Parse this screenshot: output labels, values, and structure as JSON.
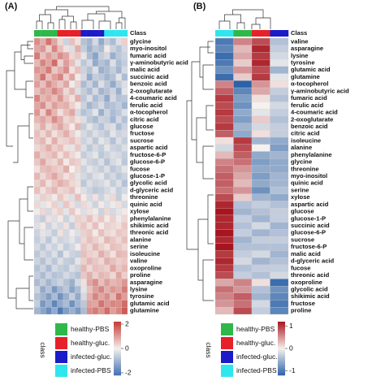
{
  "legend": {
    "title": "class",
    "items": [
      {
        "name": "healthy-PBS",
        "color": "#2fb84a"
      },
      {
        "name": "healthy-gluc.",
        "color": "#e62129"
      },
      {
        "name": "infected-gluc.",
        "color": "#1b1bc8"
      },
      {
        "name": "infected-PBS",
        "color": "#2ee6ee"
      }
    ]
  },
  "chart_data": [
    {
      "type": "heatmap",
      "panel_label": "(A)",
      "class_label": "Class",
      "colors": [
        "#3f6fb0",
        "#f5f1ee",
        "#c43a36"
      ],
      "zlim": [
        -2.2,
        2.2
      ],
      "colorbar_ticks": [
        2,
        0,
        -2
      ],
      "class_colors": [
        "#2fb84a",
        "#2fb84a",
        "#2fb84a",
        "#2fb84a",
        "#e62129",
        "#e62129",
        "#e62129",
        "#e62129",
        "#1b1bc8",
        "#1b1bc8",
        "#1b1bc8",
        "#1b1bc8",
        "#2ee6ee",
        "#2ee6ee",
        "#2ee6ee",
        "#2ee6ee"
      ],
      "rows": [
        "glycine",
        "myo-inositol",
        "fumaric acid",
        "γ-aminobutyric acid",
        "malic acid",
        "succinic acid",
        "benzoic acid",
        "2-oxoglutarate",
        "4-coumaric acid",
        "ferulic acid",
        "α-tocopherol",
        "citric acid",
        "glucose",
        "fructose",
        "sucrose",
        "aspartic acid",
        "fructose-6-P",
        "glucose-6-P",
        "fucose",
        "glucose-1-P",
        "glycolic acid",
        "d-glyceric acid",
        "threonine",
        "quinic acid",
        "xylose",
        "phenylalanine",
        "shikimic acid",
        "threonic acid",
        "alanine",
        "serine",
        "isoleucine",
        "valine",
        "oxoproline",
        "proline",
        "asparagine",
        "lysine",
        "tyrosine",
        "glutamic acid",
        "glutamine"
      ],
      "values": [
        [
          1.2,
          0.8,
          1.5,
          0.9,
          0.3,
          -0.5,
          0.6,
          0.2,
          -0.8,
          -1.0,
          -0.4,
          -1.2,
          -0.6,
          -0.9,
          -0.3,
          0.4
        ],
        [
          0.9,
          1.1,
          0.4,
          1.3,
          0.6,
          0.2,
          -0.3,
          0.8,
          -0.6,
          -1.1,
          -0.7,
          -0.9,
          0.1,
          -0.5,
          -0.8,
          -0.4
        ],
        [
          1.4,
          0.6,
          1.0,
          0.7,
          1.2,
          0.9,
          0.3,
          0.5,
          -0.2,
          -0.9,
          -1.3,
          -0.6,
          -0.4,
          -1.1,
          -0.7,
          -0.5
        ],
        [
          0.7,
          1.3,
          0.9,
          1.6,
          0.4,
          1.0,
          0.6,
          -0.2,
          -0.7,
          -0.4,
          -1.2,
          -0.8,
          -1.0,
          -0.3,
          -0.9,
          -0.6
        ],
        [
          1.1,
          0.9,
          1.4,
          0.5,
          0.8,
          1.2,
          0.2,
          0.6,
          -0.5,
          -0.8,
          -0.3,
          -1.1,
          -0.9,
          -0.6,
          -1.0,
          -0.4
        ],
        [
          0.8,
          1.5,
          0.6,
          1.0,
          1.3,
          0.4,
          0.9,
          0.1,
          -0.4,
          -1.2,
          -0.6,
          -0.7,
          -1.0,
          -0.8,
          -0.2,
          -0.9
        ],
        [
          1.0,
          0.6,
          1.2,
          0.8,
          0.5,
          0.9,
          -0.1,
          0.4,
          -0.9,
          -0.5,
          -1.0,
          -0.3,
          -0.7,
          -1.2,
          -0.6,
          -0.3
        ],
        [
          0.6,
          1.0,
          0.8,
          1.3,
          0.9,
          0.3,
          0.7,
          -0.3,
          -0.6,
          -0.9,
          -0.4,
          -1.0,
          -0.8,
          -0.5,
          -1.1,
          -0.2
        ],
        [
          1.3,
          0.7,
          0.9,
          0.6,
          1.1,
          0.5,
          0.2,
          0.8,
          -0.7,
          -0.3,
          -0.9,
          -0.6,
          -1.2,
          -0.4,
          -0.8,
          -0.7
        ],
        [
          0.9,
          1.2,
          0.5,
          1.0,
          0.7,
          0.8,
          0.4,
          0.1,
          -0.5,
          -1.0,
          -0.7,
          -0.4,
          -0.9,
          -0.8,
          -0.6,
          -1.0
        ],
        [
          1.1,
          0.4,
          1.3,
          0.7,
          0.2,
          0.6,
          0.9,
          -0.4,
          -0.8,
          -0.6,
          -0.2,
          -1.1,
          -0.5,
          -0.9,
          -0.7,
          -0.3
        ],
        [
          0.7,
          0.9,
          0.6,
          1.2,
          0.8,
          0.3,
          0.5,
          0.2,
          -0.3,
          -0.7,
          -0.9,
          -0.5,
          -0.6,
          -1.0,
          -0.4,
          -0.8
        ],
        [
          0.4,
          0.8,
          0.3,
          0.6,
          0.9,
          0.5,
          0.1,
          0.7,
          -0.6,
          -0.2,
          -0.5,
          -0.8,
          -0.4,
          -0.3,
          -0.9,
          -0.5
        ],
        [
          0.6,
          0.3,
          0.7,
          0.2,
          0.5,
          0.8,
          0.4,
          -0.1,
          -0.4,
          -0.6,
          -0.3,
          -0.5,
          -0.7,
          -0.2,
          -0.5,
          -0.4
        ],
        [
          0.5,
          0.7,
          0.2,
          0.8,
          0.3,
          0.4,
          0.6,
          0.3,
          -0.5,
          -0.3,
          -0.7,
          -0.2,
          -0.4,
          -0.8,
          -0.3,
          -0.6
        ],
        [
          0.3,
          0.5,
          0.8,
          0.4,
          0.6,
          0.2,
          -0.2,
          0.5,
          -0.3,
          -0.7,
          -0.4,
          -0.6,
          -0.2,
          -0.5,
          -0.6,
          -0.3
        ],
        [
          0.8,
          0.4,
          0.5,
          0.7,
          0.2,
          0.6,
          0.3,
          0.1,
          -0.6,
          -0.4,
          -0.2,
          -0.7,
          -0.5,
          -0.3,
          -0.4,
          -0.6
        ],
        [
          0.5,
          0.9,
          0.4,
          0.3,
          0.7,
          0.1,
          0.5,
          0.4,
          -0.2,
          -0.5,
          -0.6,
          -0.3,
          -0.8,
          -0.4,
          -0.2,
          -0.7
        ],
        [
          0.2,
          0.6,
          0.7,
          0.5,
          0.4,
          0.8,
          0.0,
          0.3,
          -0.5,
          -0.2,
          -0.4,
          -0.6,
          -0.3,
          -0.7,
          -0.5,
          -0.2
        ],
        [
          0.7,
          0.3,
          0.6,
          0.9,
          0.5,
          0.2,
          0.4,
          -0.2,
          -0.4,
          -0.6,
          -0.3,
          -0.2,
          -0.6,
          -0.4,
          -0.7,
          -0.5
        ],
        [
          0.4,
          0.7,
          0.2,
          0.5,
          0.8,
          0.6,
          0.3,
          0.2,
          -0.7,
          -0.3,
          -0.5,
          -0.4,
          -0.2,
          -0.6,
          -0.3,
          -0.8
        ],
        [
          0.6,
          0.2,
          0.5,
          0.7,
          0.3,
          0.4,
          0.6,
          0.1,
          -0.3,
          -0.5,
          -0.7,
          -0.6,
          -0.4,
          -0.2,
          -0.6,
          -0.4
        ],
        [
          -0.2,
          0.4,
          0.3,
          -0.1,
          0.5,
          0.2,
          -0.3,
          0.6,
          0.1,
          -0.4,
          0.2,
          -0.5,
          -0.2,
          0.3,
          -0.6,
          -0.1
        ],
        [
          0.3,
          -0.2,
          0.1,
          0.4,
          -0.3,
          0.5,
          0.2,
          -0.4,
          0.3,
          -0.2,
          -0.5,
          0.1,
          -0.3,
          -0.1,
          0.2,
          -0.4
        ],
        [
          -0.1,
          0.3,
          -0.4,
          0.2,
          0.4,
          -0.2,
          0.5,
          0.1,
          -0.3,
          0.2,
          -0.1,
          -0.5,
          0.3,
          -0.4,
          -0.2,
          0.1
        ],
        [
          -0.4,
          -0.6,
          0.2,
          -0.3,
          0.1,
          -0.5,
          -0.2,
          0.4,
          0.3,
          0.6,
          0.2,
          0.5,
          0.1,
          0.4,
          -0.1,
          0.3
        ],
        [
          -0.3,
          0.1,
          -0.5,
          -0.2,
          -0.4,
          0.2,
          -0.6,
          0.3,
          0.5,
          0.2,
          0.6,
          0.1,
          0.4,
          0.3,
          0.2,
          0.5
        ],
        [
          -0.5,
          -0.2,
          -0.3,
          -0.6,
          0.2,
          -0.4,
          -0.1,
          -0.3,
          0.4,
          0.5,
          0.1,
          0.6,
          0.3,
          0.2,
          0.5,
          0.4
        ],
        [
          -0.6,
          -0.3,
          -0.7,
          -0.2,
          -0.5,
          -0.4,
          -0.2,
          -0.5,
          0.3,
          0.6,
          0.4,
          0.2,
          0.7,
          0.5,
          0.3,
          0.6
        ],
        [
          -0.4,
          -0.7,
          -0.3,
          -0.5,
          -0.2,
          -0.6,
          -0.4,
          -0.1,
          0.5,
          0.3,
          0.7,
          0.4,
          0.2,
          0.6,
          0.5,
          0.3
        ],
        [
          -0.7,
          -0.4,
          -0.6,
          -0.3,
          -0.8,
          -0.2,
          -0.5,
          -0.6,
          0.6,
          0.4,
          0.3,
          0.8,
          0.5,
          0.2,
          0.7,
          0.6
        ],
        [
          -0.5,
          -0.8,
          -0.4,
          -0.7,
          -0.3,
          -0.6,
          -0.7,
          -0.2,
          0.4,
          0.7,
          0.5,
          0.3,
          0.8,
          0.6,
          0.4,
          0.5
        ],
        [
          -0.8,
          -0.5,
          -0.9,
          -0.4,
          -0.6,
          -0.7,
          -0.3,
          -0.5,
          0.7,
          0.3,
          0.6,
          0.5,
          0.4,
          0.9,
          0.5,
          0.7
        ],
        [
          -0.6,
          -0.9,
          -0.5,
          -0.8,
          -0.7,
          -0.4,
          -0.6,
          -0.8,
          0.5,
          0.8,
          0.4,
          0.7,
          0.6,
          0.3,
          0.9,
          0.4
        ],
        [
          -0.9,
          -0.6,
          -1.0,
          -0.7,
          -0.5,
          -0.8,
          -1.1,
          -0.4,
          0.2,
          0.9,
          1.2,
          0.6,
          1.0,
          0.7,
          0.8,
          1.1
        ],
        [
          -0.5,
          -1.2,
          -0.8,
          -1.5,
          -1.0,
          -0.7,
          -1.3,
          -0.9,
          -0.2,
          0.6,
          1.0,
          1.3,
          0.8,
          1.1,
          0.9,
          1.4
        ],
        [
          -0.8,
          -1.0,
          -1.4,
          -0.9,
          -1.6,
          -1.1,
          -0.6,
          -1.2,
          -0.4,
          0.8,
          1.3,
          0.9,
          1.2,
          0.7,
          1.5,
          1.0
        ],
        [
          -0.6,
          -1.5,
          -1.1,
          -1.8,
          -1.2,
          -0.9,
          -1.6,
          -1.0,
          -0.7,
          1.0,
          0.9,
          1.5,
          1.1,
          1.3,
          1.2,
          1.6
        ],
        [
          -1.0,
          -1.3,
          -1.7,
          -1.2,
          -2.0,
          -1.4,
          -1.1,
          -1.5,
          -0.9,
          1.2,
          1.4,
          1.1,
          1.6,
          1.0,
          1.3,
          1.8
        ]
      ]
    },
    {
      "type": "heatmap",
      "panel_label": "(B)",
      "class_label": "Class",
      "colors": [
        "#2b62a8",
        "#f5f1ee",
        "#a8151f"
      ],
      "zlim": [
        -1.2,
        1.2
      ],
      "colorbar_ticks": [
        1,
        0,
        -1
      ],
      "class_colors": [
        "#2ee6ee",
        "#2fb84a",
        "#e62129",
        "#1b1bc8"
      ],
      "rows": [
        "valine",
        "asparagine",
        "lysine",
        "tyrosine",
        "glutamic acid",
        "glutamine",
        "α-tocopherol",
        "γ-aminobutyric acid",
        "fumaric acid",
        "ferulic acid",
        "4-coumaric acid",
        "2-oxoglutarate",
        "benzoic acid",
        "citric acid",
        "isoleucine",
        "alanine",
        "phenylalanine",
        "glycine",
        "threonine",
        "myo-inositol",
        "quinic acid",
        "serine",
        "xylose",
        "aspartic acid",
        "glucose",
        "glucose-1-P",
        "succinic acid",
        "glucose-6-P",
        "sucrose",
        "fructose-6-P",
        "malic acid",
        "d-glyceric acid",
        "fucose",
        "threonic acid",
        "oxoproline",
        "glycolic acid",
        "shikimic acid",
        "fructose",
        "proline"
      ],
      "values": [
        [
          -1.0,
          0.6,
          0.9,
          -0.4
        ],
        [
          -0.9,
          0.3,
          1.1,
          -0.3
        ],
        [
          -1.1,
          0.4,
          1.0,
          -0.2
        ],
        [
          -1.0,
          0.2,
          1.1,
          -0.1
        ],
        [
          -0.8,
          0.5,
          0.9,
          -0.5
        ],
        [
          -1.1,
          0.2,
          1.0,
          -0.1
        ],
        [
          0.6,
          -1.2,
          0.5,
          0.1
        ],
        [
          0.8,
          -0.9,
          0.4,
          -0.3
        ],
        [
          1.0,
          -0.7,
          0.1,
          -0.4
        ],
        [
          0.9,
          -0.8,
          0.0,
          -0.2
        ],
        [
          1.0,
          -0.6,
          -0.1,
          -0.3
        ],
        [
          0.9,
          -0.7,
          0.2,
          -0.4
        ],
        [
          1.0,
          -0.5,
          -0.2,
          -0.3
        ],
        [
          0.8,
          -0.6,
          0.1,
          -0.3
        ],
        [
          0.1,
          1.0,
          -0.5,
          -0.6
        ],
        [
          -0.2,
          0.9,
          0.0,
          -0.7
        ],
        [
          0.3,
          0.8,
          -0.6,
          -0.5
        ],
        [
          0.6,
          0.7,
          -0.7,
          -0.6
        ],
        [
          0.7,
          0.5,
          -0.6,
          -0.6
        ],
        [
          0.8,
          0.4,
          -0.7,
          -0.5
        ],
        [
          0.8,
          0.3,
          -0.6,
          -0.5
        ],
        [
          0.7,
          0.5,
          -0.8,
          -0.4
        ],
        [
          0.9,
          0.2,
          -0.5,
          -0.6
        ],
        [
          1.1,
          -0.4,
          -0.3,
          -0.4
        ],
        [
          1.2,
          -0.5,
          -0.4,
          -0.3
        ],
        [
          1.1,
          -0.3,
          -0.5,
          -0.3
        ],
        [
          1.1,
          -0.4,
          -0.2,
          -0.5
        ],
        [
          1.2,
          -0.3,
          -0.5,
          -0.4
        ],
        [
          1.1,
          -0.5,
          -0.3,
          -0.3
        ],
        [
          1.2,
          -0.4,
          -0.4,
          -0.4
        ],
        [
          1.0,
          -0.3,
          -0.2,
          -0.5
        ],
        [
          1.1,
          -0.2,
          -0.5,
          -0.4
        ],
        [
          1.0,
          -0.4,
          -0.3,
          -0.3
        ],
        [
          0.9,
          -0.3,
          -0.4,
          -0.2
        ],
        [
          0.4,
          0.6,
          0.1,
          -1.1
        ],
        [
          0.7,
          0.5,
          -0.4,
          -0.8
        ],
        [
          0.6,
          0.8,
          -0.5,
          -0.9
        ],
        [
          0.5,
          0.7,
          -0.2,
          -1.0
        ],
        [
          0.3,
          0.9,
          -0.3,
          -0.9
        ]
      ]
    }
  ]
}
